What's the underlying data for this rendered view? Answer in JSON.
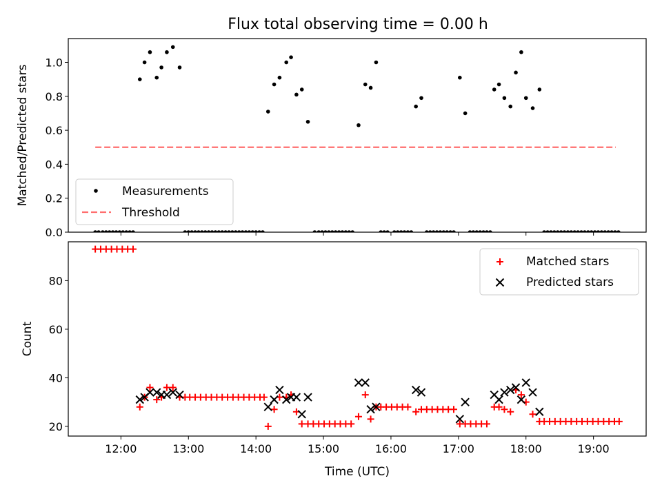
{
  "title": "Flux total observing time = 0.00 h",
  "colors": {
    "measurement": "#000000",
    "threshold": "#ff6e6e",
    "matched": "#ff0000",
    "predicted": "#000000"
  },
  "chart_data": [
    {
      "type": "scatter",
      "title": "Flux total observing time = 0.00 h",
      "xlabel": "",
      "ylabel": "Matched/Predicted stars",
      "xlim": [
        11.22,
        19.78
      ],
      "ylim": [
        0.0,
        1.14
      ],
      "yticks": [
        0.0,
        0.2,
        0.4,
        0.6,
        0.8,
        1.0
      ],
      "yticklabels": [
        "0.0",
        "0.2",
        "0.4",
        "0.6",
        "0.8",
        "1.0"
      ],
      "legend_position": "lower-left",
      "series": [
        {
          "name": "Measurements",
          "kind": "points",
          "points": [
            [
              11.62,
              0
            ],
            [
              11.67,
              0
            ],
            [
              11.73,
              0
            ],
            [
              11.78,
              0
            ],
            [
              11.83,
              0
            ],
            [
              11.88,
              0
            ],
            [
              11.93,
              0
            ],
            [
              11.98,
              0
            ],
            [
              12.03,
              0
            ],
            [
              12.08,
              0
            ],
            [
              12.13,
              0
            ],
            [
              12.18,
              0
            ],
            [
              12.28,
              0.9
            ],
            [
              12.35,
              1.0
            ],
            [
              12.43,
              1.06
            ],
            [
              12.53,
              0.91
            ],
            [
              12.6,
              0.97
            ],
            [
              12.68,
              1.06
            ],
            [
              12.77,
              1.09
            ],
            [
              12.87,
              0.97
            ],
            [
              12.95,
              0
            ],
            [
              13.0,
              0
            ],
            [
              13.05,
              0
            ],
            [
              13.1,
              0
            ],
            [
              13.15,
              0
            ],
            [
              13.2,
              0
            ],
            [
              13.25,
              0
            ],
            [
              13.3,
              0
            ],
            [
              13.35,
              0
            ],
            [
              13.4,
              0
            ],
            [
              13.45,
              0
            ],
            [
              13.5,
              0
            ],
            [
              13.55,
              0
            ],
            [
              13.6,
              0
            ],
            [
              13.65,
              0
            ],
            [
              13.7,
              0
            ],
            [
              13.75,
              0
            ],
            [
              13.8,
              0
            ],
            [
              13.85,
              0
            ],
            [
              13.9,
              0
            ],
            [
              13.95,
              0
            ],
            [
              14.0,
              0
            ],
            [
              14.05,
              0
            ],
            [
              14.1,
              0
            ],
            [
              14.18,
              0.71
            ],
            [
              14.27,
              0.87
            ],
            [
              14.35,
              0.91
            ],
            [
              14.45,
              1.0
            ],
            [
              14.52,
              1.03
            ],
            [
              14.6,
              0.81
            ],
            [
              14.68,
              0.84
            ],
            [
              14.77,
              0.65
            ],
            [
              14.87,
              0
            ],
            [
              14.93,
              0
            ],
            [
              14.98,
              0
            ],
            [
              15.03,
              0
            ],
            [
              15.08,
              0
            ],
            [
              15.13,
              0
            ],
            [
              15.18,
              0
            ],
            [
              15.23,
              0
            ],
            [
              15.28,
              0
            ],
            [
              15.33,
              0
            ],
            [
              15.38,
              0
            ],
            [
              15.43,
              0
            ],
            [
              15.52,
              0.63
            ],
            [
              15.62,
              0.87
            ],
            [
              15.7,
              0.85
            ],
            [
              15.78,
              1.0
            ],
            [
              15.85,
              0
            ],
            [
              15.9,
              0
            ],
            [
              15.95,
              0
            ],
            [
              16.05,
              0
            ],
            [
              16.1,
              0
            ],
            [
              16.15,
              0
            ],
            [
              16.2,
              0
            ],
            [
              16.25,
              0
            ],
            [
              16.3,
              0
            ],
            [
              16.37,
              0.74
            ],
            [
              16.45,
              0.79
            ],
            [
              16.53,
              0
            ],
            [
              16.58,
              0
            ],
            [
              16.63,
              0
            ],
            [
              16.68,
              0
            ],
            [
              16.73,
              0
            ],
            [
              16.78,
              0
            ],
            [
              16.83,
              0
            ],
            [
              16.88,
              0
            ],
            [
              16.93,
              0
            ],
            [
              17.02,
              0.91
            ],
            [
              17.1,
              0.7
            ],
            [
              17.17,
              0
            ],
            [
              17.22,
              0
            ],
            [
              17.27,
              0
            ],
            [
              17.32,
              0
            ],
            [
              17.37,
              0
            ],
            [
              17.42,
              0
            ],
            [
              17.47,
              0
            ],
            [
              17.53,
              0.84
            ],
            [
              17.6,
              0.87
            ],
            [
              17.68,
              0.79
            ],
            [
              17.77,
              0.74
            ],
            [
              17.85,
              0.94
            ],
            [
              17.93,
              1.06
            ],
            [
              18.0,
              0.79
            ],
            [
              18.1,
              0.73
            ],
            [
              18.2,
              0.84
            ],
            [
              18.27,
              0
            ],
            [
              18.32,
              0
            ],
            [
              18.37,
              0
            ],
            [
              18.42,
              0
            ],
            [
              18.47,
              0
            ],
            [
              18.52,
              0
            ],
            [
              18.57,
              0
            ],
            [
              18.62,
              0
            ],
            [
              18.67,
              0
            ],
            [
              18.72,
              0
            ],
            [
              18.77,
              0
            ],
            [
              18.82,
              0
            ],
            [
              18.87,
              0
            ],
            [
              18.92,
              0
            ],
            [
              18.97,
              0
            ],
            [
              19.02,
              0
            ],
            [
              19.07,
              0
            ],
            [
              19.12,
              0
            ],
            [
              19.17,
              0
            ],
            [
              19.22,
              0
            ],
            [
              19.27,
              0
            ],
            [
              19.32,
              0
            ],
            [
              19.37,
              0
            ]
          ]
        },
        {
          "name": "Threshold",
          "kind": "dashed-line",
          "points": [
            [
              11.62,
              0.5
            ],
            [
              19.33,
              0.5
            ]
          ]
        }
      ]
    },
    {
      "type": "scatter",
      "xlabel": "Time (UTC)",
      "ylabel": "Count",
      "xlim": [
        11.22,
        19.78
      ],
      "ylim": [
        16,
        96
      ],
      "xticks": [
        12,
        13,
        14,
        15,
        16,
        17,
        18,
        19
      ],
      "xticklabels": [
        "12:00",
        "13:00",
        "14:00",
        "15:00",
        "16:00",
        "17:00",
        "18:00",
        "19:00"
      ],
      "yticks": [
        20,
        40,
        60,
        80
      ],
      "yticklabels": [
        "20",
        "40",
        "60",
        "80"
      ],
      "legend_position": "upper-right",
      "series": [
        {
          "name": "Matched stars",
          "marker": "plus",
          "points": [
            [
              11.62,
              93
            ],
            [
              11.7,
              93
            ],
            [
              11.78,
              93
            ],
            [
              11.86,
              93
            ],
            [
              11.94,
              93
            ],
            [
              12.02,
              93
            ],
            [
              12.1,
              93
            ],
            [
              12.18,
              93
            ],
            [
              12.28,
              28
            ],
            [
              12.35,
              32
            ],
            [
              12.43,
              36
            ],
            [
              12.53,
              31
            ],
            [
              12.6,
              32
            ],
            [
              12.68,
              36
            ],
            [
              12.77,
              36
            ],
            [
              12.87,
              32
            ],
            [
              12.95,
              32
            ],
            [
              13.02,
              32
            ],
            [
              13.1,
              32
            ],
            [
              13.18,
              32
            ],
            [
              13.26,
              32
            ],
            [
              13.34,
              32
            ],
            [
              13.42,
              32
            ],
            [
              13.5,
              32
            ],
            [
              13.58,
              32
            ],
            [
              13.66,
              32
            ],
            [
              13.74,
              32
            ],
            [
              13.82,
              32
            ],
            [
              13.9,
              32
            ],
            [
              13.98,
              32
            ],
            [
              14.06,
              32
            ],
            [
              14.12,
              32
            ],
            [
              14.18,
              20
            ],
            [
              14.27,
              27
            ],
            [
              14.35,
              32
            ],
            [
              14.45,
              32
            ],
            [
              14.52,
              33
            ],
            [
              14.6,
              26
            ],
            [
              14.68,
              21
            ],
            [
              14.77,
              21
            ],
            [
              14.85,
              21
            ],
            [
              14.93,
              21
            ],
            [
              15.01,
              21
            ],
            [
              15.09,
              21
            ],
            [
              15.17,
              21
            ],
            [
              15.25,
              21
            ],
            [
              15.33,
              21
            ],
            [
              15.41,
              21
            ],
            [
              15.52,
              24
            ],
            [
              15.62,
              33
            ],
            [
              15.7,
              23
            ],
            [
              15.78,
              28
            ],
            [
              15.85,
              28
            ],
            [
              15.93,
              28
            ],
            [
              16.01,
              28
            ],
            [
              16.09,
              28
            ],
            [
              16.17,
              28
            ],
            [
              16.25,
              28
            ],
            [
              16.37,
              26
            ],
            [
              16.45,
              27
            ],
            [
              16.53,
              27
            ],
            [
              16.61,
              27
            ],
            [
              16.69,
              27
            ],
            [
              16.77,
              27
            ],
            [
              16.85,
              27
            ],
            [
              16.93,
              27
            ],
            [
              17.02,
              21
            ],
            [
              17.1,
              21
            ],
            [
              17.18,
              21
            ],
            [
              17.26,
              21
            ],
            [
              17.34,
              21
            ],
            [
              17.42,
              21
            ],
            [
              17.53,
              28
            ],
            [
              17.6,
              28
            ],
            [
              17.68,
              27
            ],
            [
              17.77,
              26
            ],
            [
              17.85,
              35
            ],
            [
              17.93,
              33
            ],
            [
              18.0,
              30
            ],
            [
              18.1,
              25
            ],
            [
              18.2,
              22
            ],
            [
              18.27,
              22
            ],
            [
              18.35,
              22
            ],
            [
              18.43,
              22
            ],
            [
              18.51,
              22
            ],
            [
              18.59,
              22
            ],
            [
              18.67,
              22
            ],
            [
              18.75,
              22
            ],
            [
              18.83,
              22
            ],
            [
              18.91,
              22
            ],
            [
              18.99,
              22
            ],
            [
              19.07,
              22
            ],
            [
              19.15,
              22
            ],
            [
              19.23,
              22
            ],
            [
              19.31,
              22
            ],
            [
              19.38,
              22
            ]
          ]
        },
        {
          "name": "Predicted stars",
          "marker": "x",
          "points": [
            [
              12.28,
              31
            ],
            [
              12.35,
              32
            ],
            [
              12.43,
              34
            ],
            [
              12.53,
              34
            ],
            [
              12.6,
              33
            ],
            [
              12.68,
              33
            ],
            [
              12.77,
              34
            ],
            [
              12.87,
              33
            ],
            [
              14.18,
              28
            ],
            [
              14.27,
              31
            ],
            [
              14.35,
              35
            ],
            [
              14.45,
              31
            ],
            [
              14.52,
              32
            ],
            [
              14.6,
              32
            ],
            [
              14.68,
              25
            ],
            [
              14.77,
              32
            ],
            [
              15.52,
              38
            ],
            [
              15.62,
              38
            ],
            [
              15.7,
              27
            ],
            [
              15.78,
              28
            ],
            [
              16.37,
              35
            ],
            [
              16.45,
              34
            ],
            [
              17.02,
              23
            ],
            [
              17.1,
              30
            ],
            [
              17.53,
              33
            ],
            [
              17.6,
              31
            ],
            [
              17.68,
              34
            ],
            [
              17.77,
              35
            ],
            [
              17.85,
              36
            ],
            [
              17.93,
              31
            ],
            [
              18.0,
              38
            ],
            [
              18.1,
              34
            ],
            [
              18.2,
              26
            ]
          ]
        }
      ]
    }
  ]
}
